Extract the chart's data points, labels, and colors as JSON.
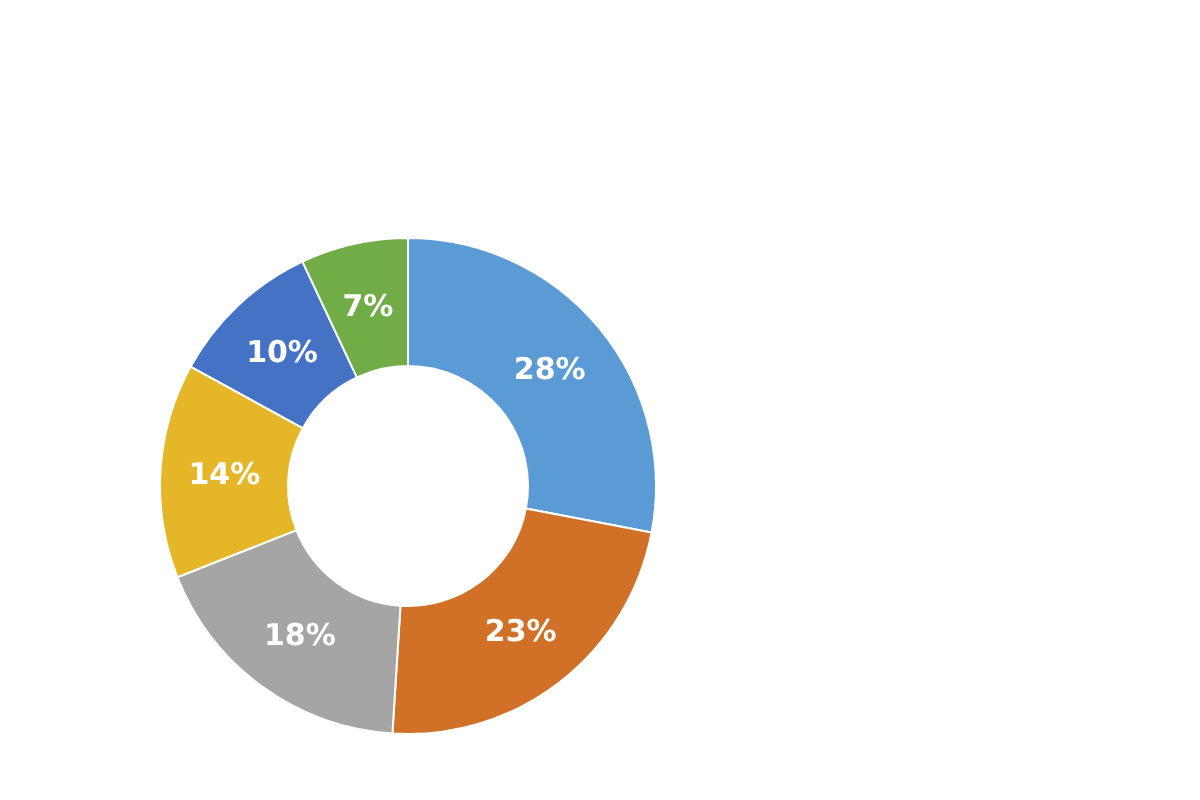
{
  "chart_data": {
    "type": "donut",
    "categories": [
      null,
      null,
      null,
      null,
      null,
      null
    ],
    "values": [
      28,
      23,
      18,
      14,
      10,
      7
    ],
    "colors": [
      "#5b9bd5",
      "#d07127",
      "#a5a5a5",
      "#e5b728",
      "#4472c4",
      "#70ad47"
    ],
    "value_labels": [
      "28%",
      "23%",
      "18%",
      "14%",
      "10%",
      "7%"
    ]
  }
}
